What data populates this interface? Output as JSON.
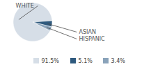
{
  "chart_data": {
    "type": "pie",
    "categories": [
      "WHITE",
      "ASIAN",
      "HISPANIC"
    ],
    "values": [
      91.5,
      5.1,
      3.4
    ],
    "value_labels": [
      "91.5%",
      "5.1%",
      "3.4%"
    ],
    "colors": [
      "#d6dee7",
      "#2f5a7e",
      "#8aa3ba"
    ],
    "legend": "bottom"
  }
}
